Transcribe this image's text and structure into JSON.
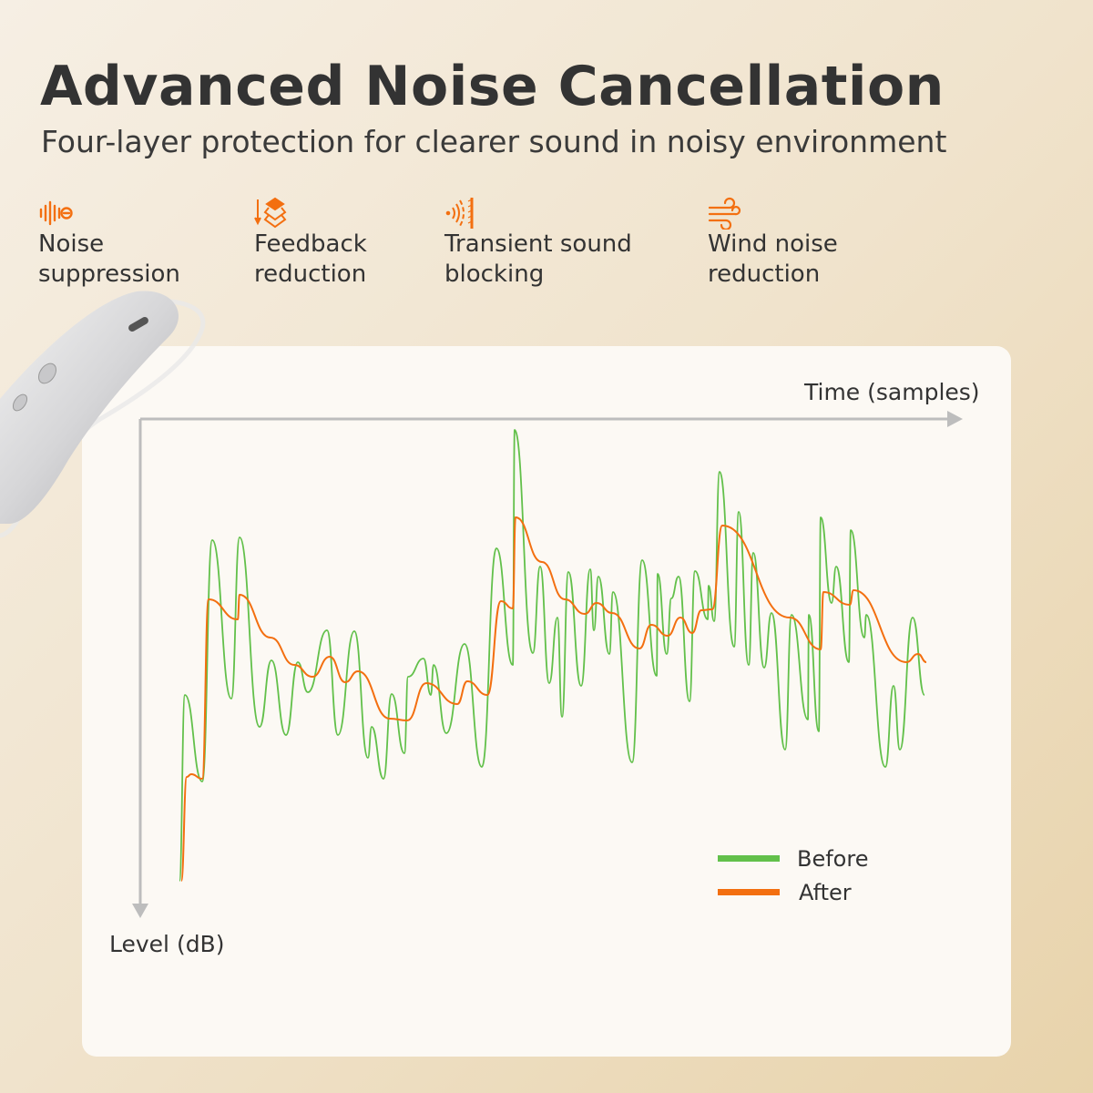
{
  "header": {
    "title": "Advanced Noise Cancellation",
    "subtitle": "Four-layer protection for clearer sound in noisy environment"
  },
  "features": [
    {
      "icon": "sound-wave-icon",
      "line1": "Noise",
      "line2": "suppression"
    },
    {
      "icon": "layers-arrow-icon",
      "line1": "Feedback",
      "line2": "reduction"
    },
    {
      "icon": "sound-barrier-icon",
      "line1": "Transient sound",
      "line2": "blocking"
    },
    {
      "icon": "wind-icon",
      "line1": "Wind noise",
      "line2": "reduction"
    }
  ],
  "colors": {
    "accent": "#f36f10",
    "before": "#62c04a",
    "after": "#f36f10",
    "axis": "#bdbdbd"
  },
  "chart_data": {
    "type": "line",
    "title": "",
    "xlabel": "Time (samples)",
    "ylabel": "Level (dB)",
    "y_direction": "down",
    "xlim": [
      0,
      860
    ],
    "ylim": [
      0,
      540
    ],
    "grid": false,
    "legend_position": "bottom-right",
    "series": [
      {
        "name": "Before",
        "color": "#62c04a",
        "points": [
          [
            0,
            507
          ],
          [
            6,
            303
          ],
          [
            25,
            398
          ],
          [
            36,
            133
          ],
          [
            57,
            307
          ],
          [
            66,
            130
          ],
          [
            88,
            338
          ],
          [
            101,
            265
          ],
          [
            117,
            347
          ],
          [
            130,
            267
          ],
          [
            141,
            300
          ],
          [
            162,
            232
          ],
          [
            174,
            347
          ],
          [
            192,
            233
          ],
          [
            207,
            372
          ],
          [
            211,
            338
          ],
          [
            224,
            395
          ],
          [
            233,
            302
          ],
          [
            247,
            367
          ],
          [
            251,
            283
          ],
          [
            268,
            263
          ],
          [
            276,
            303
          ],
          [
            279,
            270
          ],
          [
            293,
            345
          ],
          [
            313,
            247
          ],
          [
            332,
            382
          ],
          [
            348,
            142
          ],
          [
            366,
            270
          ],
          [
            368,
            12
          ],
          [
            388,
            257
          ],
          [
            396,
            162
          ],
          [
            406,
            290
          ],
          [
            415,
            218
          ],
          [
            420,
            327
          ],
          [
            427,
            168
          ],
          [
            441,
            293
          ],
          [
            451,
            165
          ],
          [
            455,
            232
          ],
          [
            460,
            173
          ],
          [
            472,
            258
          ],
          [
            476,
            190
          ],
          [
            497,
            377
          ],
          [
            508,
            155
          ],
          [
            524,
            282
          ],
          [
            525,
            170
          ],
          [
            535,
            258
          ],
          [
            540,
            197
          ],
          [
            548,
            173
          ],
          [
            560,
            310
          ],
          [
            566,
            167
          ],
          [
            580,
            220
          ],
          [
            581,
            183
          ],
          [
            587,
            222
          ],
          [
            593,
            58
          ],
          [
            609,
            250
          ],
          [
            614,
            102
          ],
          [
            625,
            270
          ],
          [
            630,
            147
          ],
          [
            642,
            273
          ],
          [
            650,
            213
          ],
          [
            665,
            363
          ],
          [
            672,
            215
          ],
          [
            690,
            330
          ],
          [
            691,
            215
          ],
          [
            702,
            343
          ],
          [
            704,
            108
          ],
          [
            716,
            202
          ],
          [
            721,
            162
          ],
          [
            735,
            267
          ],
          [
            737,
            122
          ],
          [
            752,
            240
          ],
          [
            754,
            215
          ],
          [
            775,
            382
          ],
          [
            784,
            293
          ],
          [
            791,
            363
          ],
          [
            805,
            218
          ],
          [
            818,
            303
          ]
        ]
      },
      {
        "name": "After",
        "color": "#f36f10",
        "points": [
          [
            2,
            507
          ],
          [
            8,
            393
          ],
          [
            13,
            390
          ],
          [
            25,
            395
          ],
          [
            32,
            198
          ],
          [
            64,
            220
          ],
          [
            66,
            193
          ],
          [
            100,
            240
          ],
          [
            126,
            270
          ],
          [
            146,
            283
          ],
          [
            165,
            261
          ],
          [
            182,
            289
          ],
          [
            196,
            277
          ],
          [
            231,
            329
          ],
          [
            250,
            331
          ],
          [
            271,
            290
          ],
          [
            305,
            313
          ],
          [
            316,
            288
          ],
          [
            338,
            303
          ],
          [
            353,
            200
          ],
          [
            366,
            208
          ],
          [
            369,
            108
          ],
          [
            398,
            157
          ],
          [
            423,
            198
          ],
          [
            445,
            214
          ],
          [
            458,
            202
          ],
          [
            475,
            213
          ],
          [
            505,
            252
          ],
          [
            518,
            226
          ],
          [
            536,
            238
          ],
          [
            550,
            218
          ],
          [
            563,
            235
          ],
          [
            573,
            210
          ],
          [
            585,
            209
          ],
          [
            596,
            117
          ],
          [
            670,
            218
          ],
          [
            704,
            253
          ],
          [
            707,
            190
          ],
          [
            736,
            204
          ],
          [
            740,
            188
          ],
          [
            798,
            267
          ],
          [
            811,
            258
          ],
          [
            820,
            267
          ]
        ]
      }
    ]
  }
}
